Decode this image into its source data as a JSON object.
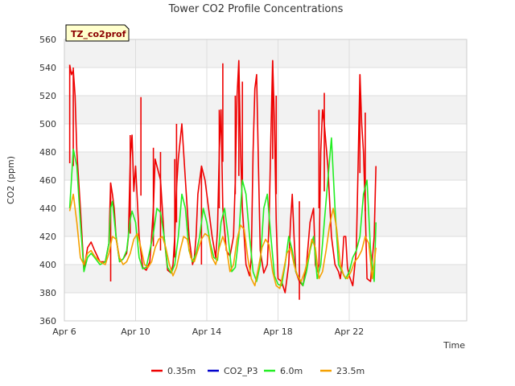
{
  "chart_data": {
    "type": "line",
    "title": "Tower CO2 Profile Concentrations",
    "xlabel": "Time",
    "ylabel": "CO2 (ppm)",
    "site_tag": "TZ_co2prof",
    "x_unit": "days since Apr 6",
    "xlim": [
      0,
      22.6
    ],
    "ylim": [
      360,
      560
    ],
    "x_ticks": [
      {
        "x": 0,
        "label": "Apr 6"
      },
      {
        "x": 4,
        "label": "Apr 10"
      },
      {
        "x": 8,
        "label": "Apr 14"
      },
      {
        "x": 12,
        "label": "Apr 18"
      },
      {
        "x": 16,
        "label": "Apr 22"
      }
    ],
    "y_ticks": [
      360,
      380,
      400,
      420,
      440,
      460,
      480,
      500,
      520,
      540,
      560
    ],
    "legend_position": "bottom",
    "series": [
      {
        "name": "0.35m",
        "color": "#ee0000",
        "x": [
          0.3,
          0.4,
          0.5,
          0.6,
          0.7,
          0.9,
          1.1,
          1.3,
          1.5,
          1.7,
          2.0,
          2.3,
          2.5,
          2.6,
          2.7,
          2.8,
          2.9,
          3.1,
          3.3,
          3.5,
          3.6,
          3.7,
          3.8,
          3.9,
          4.0,
          4.2,
          4.4,
          4.6,
          4.8,
          4.9,
          5.0,
          5.1,
          5.2,
          5.4,
          5.6,
          5.8,
          6.0,
          6.1,
          6.2,
          6.3,
          6.4,
          6.6,
          6.8,
          7.0,
          7.2,
          7.3,
          7.4,
          7.5,
          7.7,
          7.9,
          8.1,
          8.3,
          8.5,
          8.6,
          8.7,
          8.8,
          8.9,
          9.1,
          9.3,
          9.5,
          9.6,
          9.7,
          9.8,
          9.9,
          10.0,
          10.2,
          10.4,
          10.5,
          10.6,
          10.7,
          10.8,
          10.9,
          11.0,
          11.2,
          11.4,
          11.5,
          11.6,
          11.7,
          11.8,
          11.9,
          12.0,
          12.2,
          12.4,
          12.6,
          12.7,
          12.8,
          12.9,
          13.0,
          13.2,
          13.4,
          13.6,
          13.8,
          14.0,
          14.1,
          14.2,
          14.3,
          14.4,
          14.5,
          14.6,
          14.8,
          15.0,
          15.2,
          15.4,
          15.5,
          15.6,
          15.7,
          15.8,
          15.9,
          16.0,
          16.2,
          16.4,
          16.5,
          16.6,
          16.7,
          16.8,
          16.9,
          17.0,
          17.2,
          17.4,
          17.5
        ],
        "y": [
          542,
          535,
          538,
          520,
          480,
          440,
          396,
          412,
          416,
          410,
          402,
          402,
          415,
          458,
          450,
          440,
          420,
          402,
          404,
          408,
          420,
          475,
          492,
          452,
          470,
          420,
          398,
          396,
          402,
          420,
          440,
          475,
          470,
          460,
          420,
          396,
          394,
          400,
          420,
          455,
          475,
          500,
          460,
          420,
          400,
          405,
          420,
          450,
          470,
          460,
          440,
          420,
          405,
          425,
          480,
          510,
          440,
          410,
          406,
          420,
          460,
          520,
          545,
          480,
          440,
          400,
          392,
          405,
          480,
          525,
          535,
          470,
          410,
          394,
          400,
          430,
          490,
          545,
          500,
          430,
          390,
          388,
          380,
          400,
          430,
          450,
          420,
          395,
          388,
          385,
          400,
          430,
          440,
          400,
          395,
          400,
          480,
          510,
          500,
          470,
          420,
          400,
          395,
          390,
          400,
          420,
          420,
          398,
          392,
          385,
          410,
          470,
          535,
          500,
          480,
          440,
          390,
          388,
          420,
          470
        ],
        "spikes": [
          [
            0.3,
            542
          ],
          [
            0.5,
            540
          ],
          [
            2.6,
            458
          ],
          [
            3.7,
            492
          ],
          [
            4.3,
            519
          ],
          [
            5.0,
            483
          ],
          [
            5.4,
            480
          ],
          [
            6.2,
            475
          ],
          [
            6.3,
            500
          ],
          [
            7.7,
            470
          ],
          [
            8.7,
            510
          ],
          [
            8.9,
            543
          ],
          [
            9.6,
            520
          ],
          [
            9.8,
            533
          ],
          [
            10.0,
            530
          ],
          [
            11.7,
            545
          ],
          [
            11.9,
            520
          ],
          [
            13.2,
            445
          ],
          [
            14.3,
            510
          ],
          [
            14.6,
            522
          ],
          [
            16.6,
            535
          ],
          [
            16.9,
            508
          ]
        ]
      },
      {
        "name": "CO2_P3",
        "color": "#0000cc",
        "x": [],
        "y": []
      },
      {
        "name": "6.0m",
        "color": "#22ee22",
        "x": [
          0.3,
          0.5,
          0.7,
          0.9,
          1.1,
          1.3,
          1.5,
          1.7,
          2.0,
          2.3,
          2.5,
          2.6,
          2.7,
          2.9,
          3.1,
          3.3,
          3.5,
          3.7,
          3.8,
          4.0,
          4.2,
          4.4,
          4.6,
          4.8,
          5.0,
          5.2,
          5.4,
          5.6,
          5.8,
          6.0,
          6.2,
          6.4,
          6.6,
          6.8,
          7.0,
          7.2,
          7.4,
          7.6,
          7.8,
          8.0,
          8.2,
          8.4,
          8.6,
          8.8,
          9.0,
          9.2,
          9.4,
          9.6,
          9.8,
          10.0,
          10.2,
          10.4,
          10.6,
          10.8,
          11.0,
          11.2,
          11.4,
          11.6,
          11.8,
          12.0,
          12.2,
          12.4,
          12.6,
          12.8,
          13.0,
          13.2,
          13.4,
          13.6,
          13.8,
          14.0,
          14.2,
          14.4,
          14.6,
          14.8,
          15.0,
          15.2,
          15.4,
          15.6,
          15.8,
          16.0,
          16.2,
          16.4,
          16.6,
          16.8,
          17.0,
          17.2,
          17.4,
          17.5
        ],
        "y": [
          440,
          482,
          470,
          430,
          395,
          405,
          408,
          405,
          400,
          402,
          415,
          440,
          445,
          420,
          402,
          404,
          410,
          432,
          438,
          430,
          405,
          397,
          398,
          410,
          422,
          440,
          437,
          420,
          398,
          394,
          400,
          420,
          450,
          440,
          410,
          402,
          408,
          420,
          440,
          430,
          415,
          405,
          403,
          430,
          440,
          420,
          395,
          398,
          420,
          460,
          450,
          420,
          395,
          388,
          400,
          440,
          450,
          420,
          392,
          386,
          385,
          400,
          420,
          410,
          395,
          390,
          385,
          395,
          410,
          420,
          390,
          400,
          430,
          460,
          490,
          440,
          400,
          395,
          390,
          395,
          405,
          410,
          420,
          450,
          460,
          410,
          388,
          430
        ]
      },
      {
        "name": "23.5m",
        "color": "#f5a000",
        "x": [
          0.3,
          0.5,
          0.7,
          0.9,
          1.1,
          1.3,
          1.5,
          1.7,
          2.0,
          2.3,
          2.5,
          2.7,
          2.9,
          3.1,
          3.3,
          3.5,
          3.7,
          3.9,
          4.1,
          4.3,
          4.5,
          4.7,
          4.9,
          5.1,
          5.3,
          5.5,
          5.7,
          5.9,
          6.1,
          6.3,
          6.5,
          6.7,
          6.9,
          7.1,
          7.3,
          7.5,
          7.7,
          7.9,
          8.1,
          8.3,
          8.5,
          8.7,
          8.9,
          9.1,
          9.3,
          9.5,
          9.7,
          9.9,
          10.1,
          10.3,
          10.5,
          10.7,
          10.9,
          11.1,
          11.3,
          11.5,
          11.7,
          11.9,
          12.1,
          12.3,
          12.5,
          12.7,
          12.9,
          13.1,
          13.3,
          13.5,
          13.7,
          13.9,
          14.1,
          14.3,
          14.5,
          14.7,
          14.9,
          15.1,
          15.3,
          15.5,
          15.7,
          15.9,
          16.1,
          16.3,
          16.5,
          16.7,
          16.9,
          17.1,
          17.3,
          17.5
        ],
        "y": [
          438,
          450,
          430,
          405,
          400,
          408,
          410,
          406,
          402,
          400,
          408,
          420,
          418,
          405,
          400,
          402,
          408,
          418,
          422,
          412,
          400,
          398,
          402,
          412,
          418,
          420,
          412,
          400,
          392,
          398,
          410,
          420,
          418,
          405,
          402,
          410,
          418,
          422,
          420,
          405,
          400,
          412,
          420,
          412,
          395,
          400,
          418,
          428,
          425,
          405,
          390,
          385,
          398,
          412,
          418,
          414,
          395,
          385,
          383,
          395,
          408,
          412,
          400,
          392,
          388,
          395,
          405,
          418,
          412,
          390,
          395,
          410,
          428,
          440,
          425,
          400,
          392,
          390,
          395,
          402,
          405,
          410,
          420,
          415,
          390,
          412
        ]
      }
    ]
  }
}
